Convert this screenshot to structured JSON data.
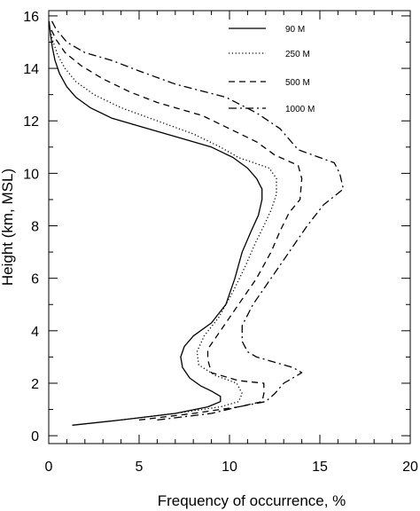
{
  "chart_data": {
    "type": "line",
    "xlabel": "Frequency of occurrence, %",
    "ylabel": "Height (km, MSL)",
    "xlim": [
      0,
      20
    ],
    "ylim": [
      -0.3,
      16.2
    ],
    "x_ticks": [
      0,
      5,
      10,
      15,
      20
    ],
    "y_ticks": [
      0,
      2,
      4,
      6,
      8,
      10,
      12,
      14,
      16
    ],
    "grid": false,
    "legend_position": "top-right",
    "series": [
      {
        "name": "90 M",
        "dash": "solid",
        "points": [
          [
            1.3,
            0.4
          ],
          [
            4.0,
            0.6
          ],
          [
            7.0,
            0.85
          ],
          [
            8.8,
            1.1
          ],
          [
            9.5,
            1.3
          ],
          [
            9.5,
            1.5
          ],
          [
            9.0,
            1.7
          ],
          [
            8.4,
            1.9
          ],
          [
            7.8,
            2.2
          ],
          [
            7.4,
            2.6
          ],
          [
            7.3,
            3.0
          ],
          [
            7.5,
            3.4
          ],
          [
            8.0,
            3.8
          ],
          [
            9.0,
            4.3
          ],
          [
            9.8,
            5.0
          ],
          [
            10.3,
            6.0
          ],
          [
            10.7,
            7.0
          ],
          [
            11.2,
            7.8
          ],
          [
            11.6,
            8.4
          ],
          [
            11.8,
            9.0
          ],
          [
            11.8,
            9.4
          ],
          [
            11.5,
            9.8
          ],
          [
            11.0,
            10.2
          ],
          [
            10.2,
            10.6
          ],
          [
            9.0,
            11.0
          ],
          [
            7.5,
            11.3
          ],
          [
            5.5,
            11.7
          ],
          [
            3.5,
            12.1
          ],
          [
            2.3,
            12.5
          ],
          [
            1.5,
            12.9
          ],
          [
            1.0,
            13.3
          ],
          [
            0.6,
            13.8
          ],
          [
            0.35,
            14.3
          ],
          [
            0.2,
            14.8
          ],
          [
            0.1,
            15.3
          ],
          [
            0.02,
            15.8
          ]
        ]
      },
      {
        "name": "250 M",
        "dash": "dotted",
        "points": [
          [
            4.0,
            0.6
          ],
          [
            7.0,
            0.85
          ],
          [
            9.5,
            1.1
          ],
          [
            10.5,
            1.3
          ],
          [
            10.7,
            1.6
          ],
          [
            10.4,
            2.0
          ],
          [
            9.2,
            2.3
          ],
          [
            8.3,
            2.7
          ],
          [
            8.2,
            3.2
          ],
          [
            8.6,
            3.8
          ],
          [
            9.4,
            4.5
          ],
          [
            10.2,
            5.5
          ],
          [
            10.9,
            6.5
          ],
          [
            11.4,
            7.3
          ],
          [
            11.9,
            8.0
          ],
          [
            12.3,
            8.6
          ],
          [
            12.6,
            9.2
          ],
          [
            12.6,
            9.8
          ],
          [
            12.2,
            10.2
          ],
          [
            10.5,
            10.6
          ],
          [
            9.5,
            11.0
          ],
          [
            8.0,
            11.5
          ],
          [
            6.0,
            12.0
          ],
          [
            4.0,
            12.5
          ],
          [
            2.5,
            13.0
          ],
          [
            1.5,
            13.5
          ],
          [
            0.9,
            14.0
          ],
          [
            0.5,
            14.5
          ],
          [
            0.25,
            15.0
          ],
          [
            0.05,
            15.5
          ]
        ]
      },
      {
        "name": "500 M",
        "dash": "dashed",
        "points": [
          [
            5.0,
            0.6
          ],
          [
            8.0,
            0.85
          ],
          [
            10.5,
            1.1
          ],
          [
            11.8,
            1.3
          ],
          [
            11.9,
            1.6
          ],
          [
            11.9,
            2.0
          ],
          [
            10.5,
            2.1
          ],
          [
            9.0,
            2.4
          ],
          [
            8.8,
            2.9
          ],
          [
            8.8,
            3.3
          ],
          [
            9.5,
            4.0
          ],
          [
            10.5,
            5.0
          ],
          [
            11.5,
            6.0
          ],
          [
            12.3,
            7.0
          ],
          [
            12.8,
            7.8
          ],
          [
            13.3,
            8.5
          ],
          [
            13.9,
            9.0
          ],
          [
            14.0,
            9.8
          ],
          [
            13.8,
            10.3
          ],
          [
            12.5,
            10.7
          ],
          [
            11.5,
            11.2
          ],
          [
            10.0,
            11.7
          ],
          [
            8.5,
            12.2
          ],
          [
            6.0,
            12.7
          ],
          [
            4.5,
            13.1
          ],
          [
            3.0,
            13.6
          ],
          [
            1.8,
            14.1
          ],
          [
            0.9,
            14.6
          ],
          [
            0.4,
            15.1
          ],
          [
            0.05,
            15.6
          ]
        ]
      },
      {
        "name": "1000 M",
        "dash": "dashdot",
        "points": [
          [
            6.0,
            0.6
          ],
          [
            9.0,
            0.85
          ],
          [
            10.5,
            1.1
          ],
          [
            12.0,
            1.3
          ],
          [
            12.5,
            1.6
          ],
          [
            13.0,
            2.0
          ],
          [
            14.0,
            2.4
          ],
          [
            13.5,
            2.6
          ],
          [
            11.5,
            3.0
          ],
          [
            11.0,
            3.2
          ],
          [
            10.7,
            3.6
          ],
          [
            10.7,
            4.2
          ],
          [
            11.3,
            5.0
          ],
          [
            12.3,
            6.0
          ],
          [
            13.3,
            7.0
          ],
          [
            14.3,
            8.0
          ],
          [
            15.2,
            8.8
          ],
          [
            16.3,
            9.4
          ],
          [
            16.1,
            10.0
          ],
          [
            15.8,
            10.4
          ],
          [
            13.8,
            10.9
          ],
          [
            12.8,
            11.7
          ],
          [
            11.5,
            12.3
          ],
          [
            9.8,
            12.9
          ],
          [
            7.0,
            13.4
          ],
          [
            5.0,
            13.9
          ],
          [
            3.5,
            14.3
          ],
          [
            2.0,
            14.6
          ],
          [
            1.0,
            15.0
          ],
          [
            0.4,
            15.5
          ],
          [
            0.1,
            15.9
          ]
        ]
      }
    ]
  }
}
